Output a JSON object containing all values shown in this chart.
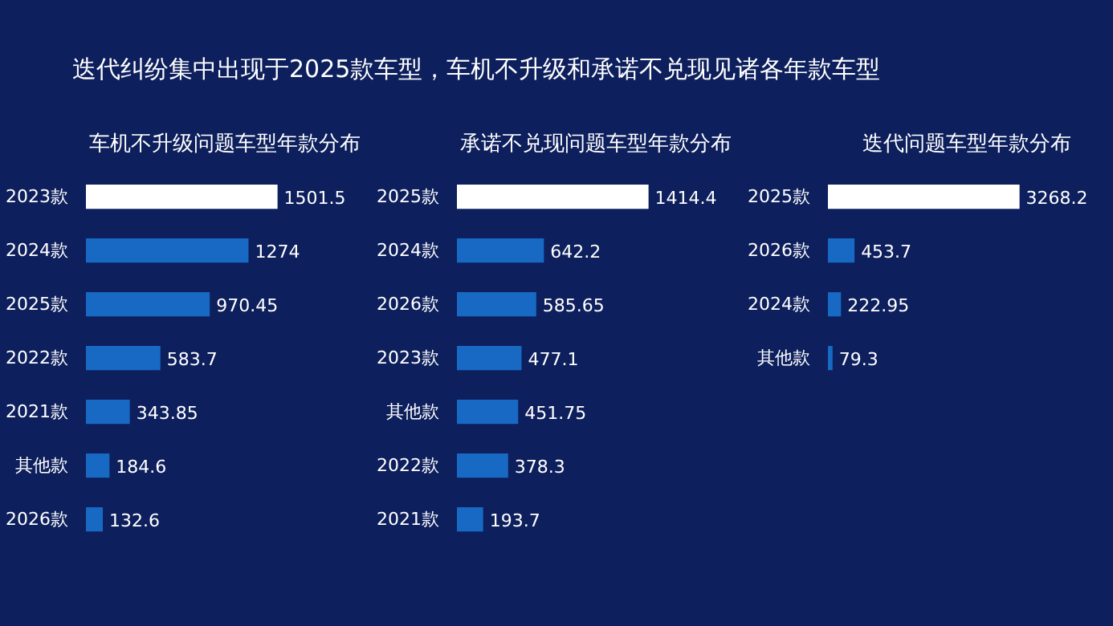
{
  "chart_data": [
    {
      "type": "bar",
      "orientation": "horizontal",
      "title": "车机不升级问题车型年款分布",
      "annotations": [
        "迭代纠纷集中出现于2025款车型，车机不升级和承诺不兑现见诸各年款车型"
      ],
      "categories": [
        "2023款",
        "2024款",
        "2025款",
        "2022款",
        "2021款",
        "其他款",
        "2026款"
      ],
      "values": [
        1501.5,
        1274,
        970.45,
        583.7,
        343.85,
        184.6,
        132.6
      ],
      "colors": [
        "#ffffff",
        "#1769c4",
        "#1769c4",
        "#1769c4",
        "#1769c4",
        "#1769c4",
        "#1769c4"
      ],
      "data_labels": true
    },
    {
      "type": "bar",
      "orientation": "horizontal",
      "title": "承诺不兑现问题车型年款分布",
      "categories": [
        "2025款",
        "2024款",
        "2026款",
        "2023款",
        "其他款",
        "2022款",
        "2021款"
      ],
      "values": [
        1414.4,
        642.2,
        585.65,
        477.1,
        451.75,
        378.3,
        193.7
      ],
      "colors": [
        "#ffffff",
        "#1769c4",
        "#1769c4",
        "#1769c4",
        "#1769c4",
        "#1769c4",
        "#1769c4"
      ],
      "data_labels": true
    },
    {
      "type": "bar",
      "orientation": "horizontal",
      "title": "迭代问题车型年款分布",
      "categories": [
        "2025款",
        "2026款",
        "2024款",
        "其他款"
      ],
      "values": [
        3268.2,
        453.7,
        222.95,
        79.3
      ],
      "colors": [
        "#ffffff",
        "#1769c4",
        "#1769c4",
        "#1769c4"
      ],
      "data_labels": true
    }
  ]
}
